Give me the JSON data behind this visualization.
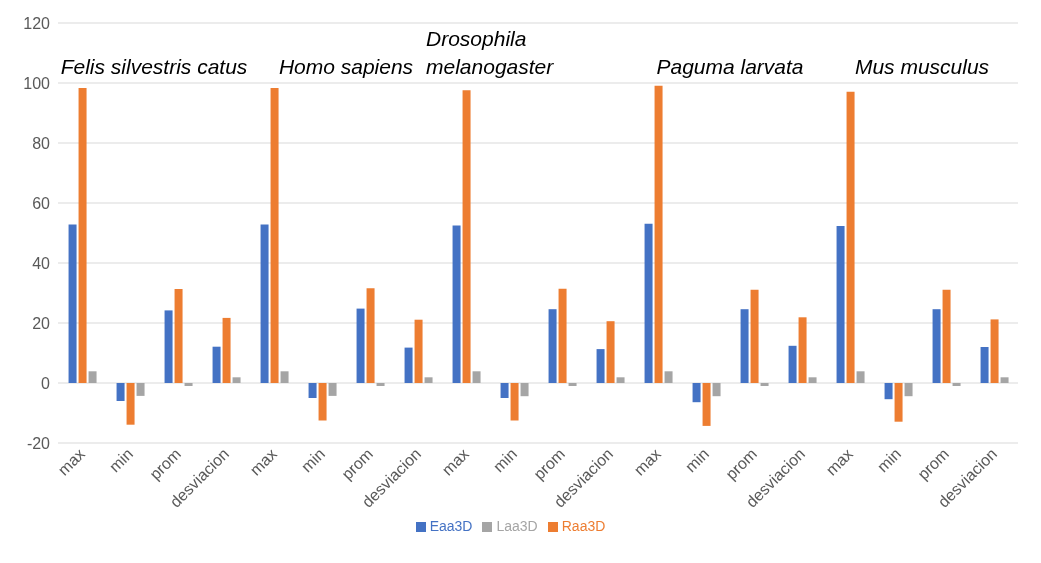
{
  "chart_data": {
    "type": "bar",
    "categories": [
      "max",
      "min",
      "prom",
      "desviacion",
      "max",
      "min",
      "prom",
      "desviacion",
      "max",
      "min",
      "prom",
      "desviacion",
      "max",
      "min",
      "prom",
      "desviacion",
      "max",
      "min",
      "prom",
      "desviacion"
    ],
    "series": [
      {
        "name": "Eaa3D",
        "color": "#4472c4",
        "values": [
          52.8,
          -6.0,
          24.2,
          12.1,
          52.8,
          -5.0,
          24.8,
          11.8,
          52.5,
          -5.0,
          24.6,
          11.3,
          53.1,
          -6.4,
          24.6,
          12.4,
          52.3,
          -5.4,
          24.6,
          12.0
        ]
      },
      {
        "name": "Raa3D",
        "color": "#ed7d31",
        "values": [
          98.3,
          -13.9,
          31.3,
          21.7,
          98.3,
          -12.5,
          31.6,
          21.1,
          97.6,
          -12.5,
          31.4,
          20.6,
          99.1,
          -14.3,
          31.1,
          21.9,
          97.1,
          -12.9,
          31.1,
          21.2
        ]
      },
      {
        "name": "Laa3D",
        "color": "#a5a5a5",
        "values": [
          3.9,
          -4.3,
          -1.0,
          1.9,
          3.9,
          -4.3,
          -1.0,
          1.9,
          3.9,
          -4.4,
          -1.0,
          1.9,
          3.9,
          -4.4,
          -1.0,
          1.9,
          3.9,
          -4.4,
          -1.0,
          1.9
        ]
      }
    ],
    "annotations": [
      "Felis silvestris catus",
      "Homo sapiens",
      "Drosophila melanogaster",
      "Paguma larvata",
      "Mus musculus"
    ],
    "ylim": [
      -20,
      120
    ],
    "yticks": [
      -20,
      0,
      20,
      40,
      60,
      80,
      100,
      120
    ],
    "grid": "y",
    "legend": "bottom"
  }
}
